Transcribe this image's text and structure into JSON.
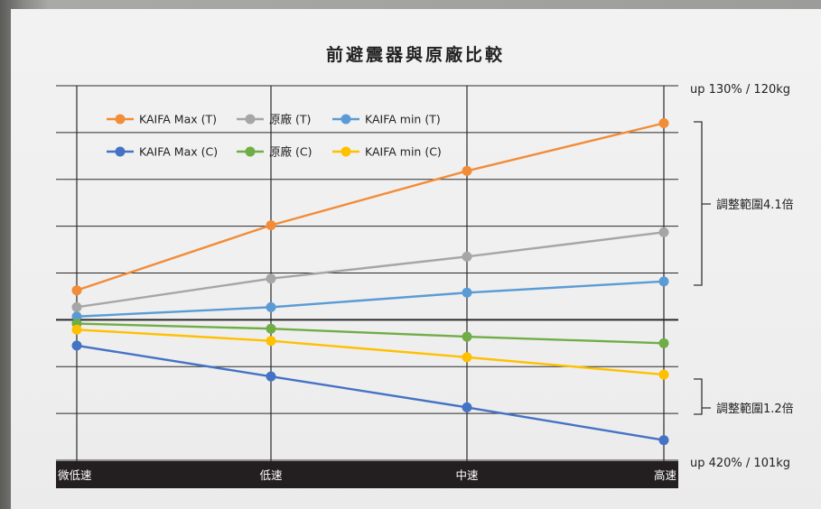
{
  "chart_data": {
    "type": "line",
    "title": "前避震器與原廠比較",
    "categories": [
      "微低速",
      "低速",
      "中速",
      "高速"
    ],
    "series": [
      {
        "name": "KAIFA Max (T)",
        "color": "#F28C38",
        "values": [
          0.63,
          2.02,
          3.18,
          4.2
        ]
      },
      {
        "name": "原廠 (T)",
        "color": "#A6A6A6",
        "values": [
          0.27,
          0.88,
          1.35,
          1.87
        ]
      },
      {
        "name": "KAIFA min (T)",
        "color": "#5B9BD5",
        "values": [
          0.07,
          0.27,
          0.58,
          0.82
        ]
      },
      {
        "name": "KAIFA Max (C)",
        "color": "#4472C4",
        "values": [
          -0.55,
          -1.21,
          -1.87,
          -2.57
        ]
      },
      {
        "name": "原廠 (C)",
        "color": "#70AD47",
        "values": [
          -0.08,
          -0.19,
          -0.36,
          -0.5
        ]
      },
      {
        "name": "KAIFA min (C)",
        "color": "#FFC000",
        "values": [
          -0.21,
          -0.45,
          -0.8,
          -1.17
        ]
      }
    ],
    "ylim": [
      -3,
      5
    ],
    "grid": true,
    "legend": "top-left"
  },
  "annotations": {
    "top_label": "up 130% / 120kg",
    "bottom_label": "up 420% / 101kg",
    "range_upper": "調整範圍4.1倍",
    "range_lower": "調整範圍1.2倍"
  }
}
